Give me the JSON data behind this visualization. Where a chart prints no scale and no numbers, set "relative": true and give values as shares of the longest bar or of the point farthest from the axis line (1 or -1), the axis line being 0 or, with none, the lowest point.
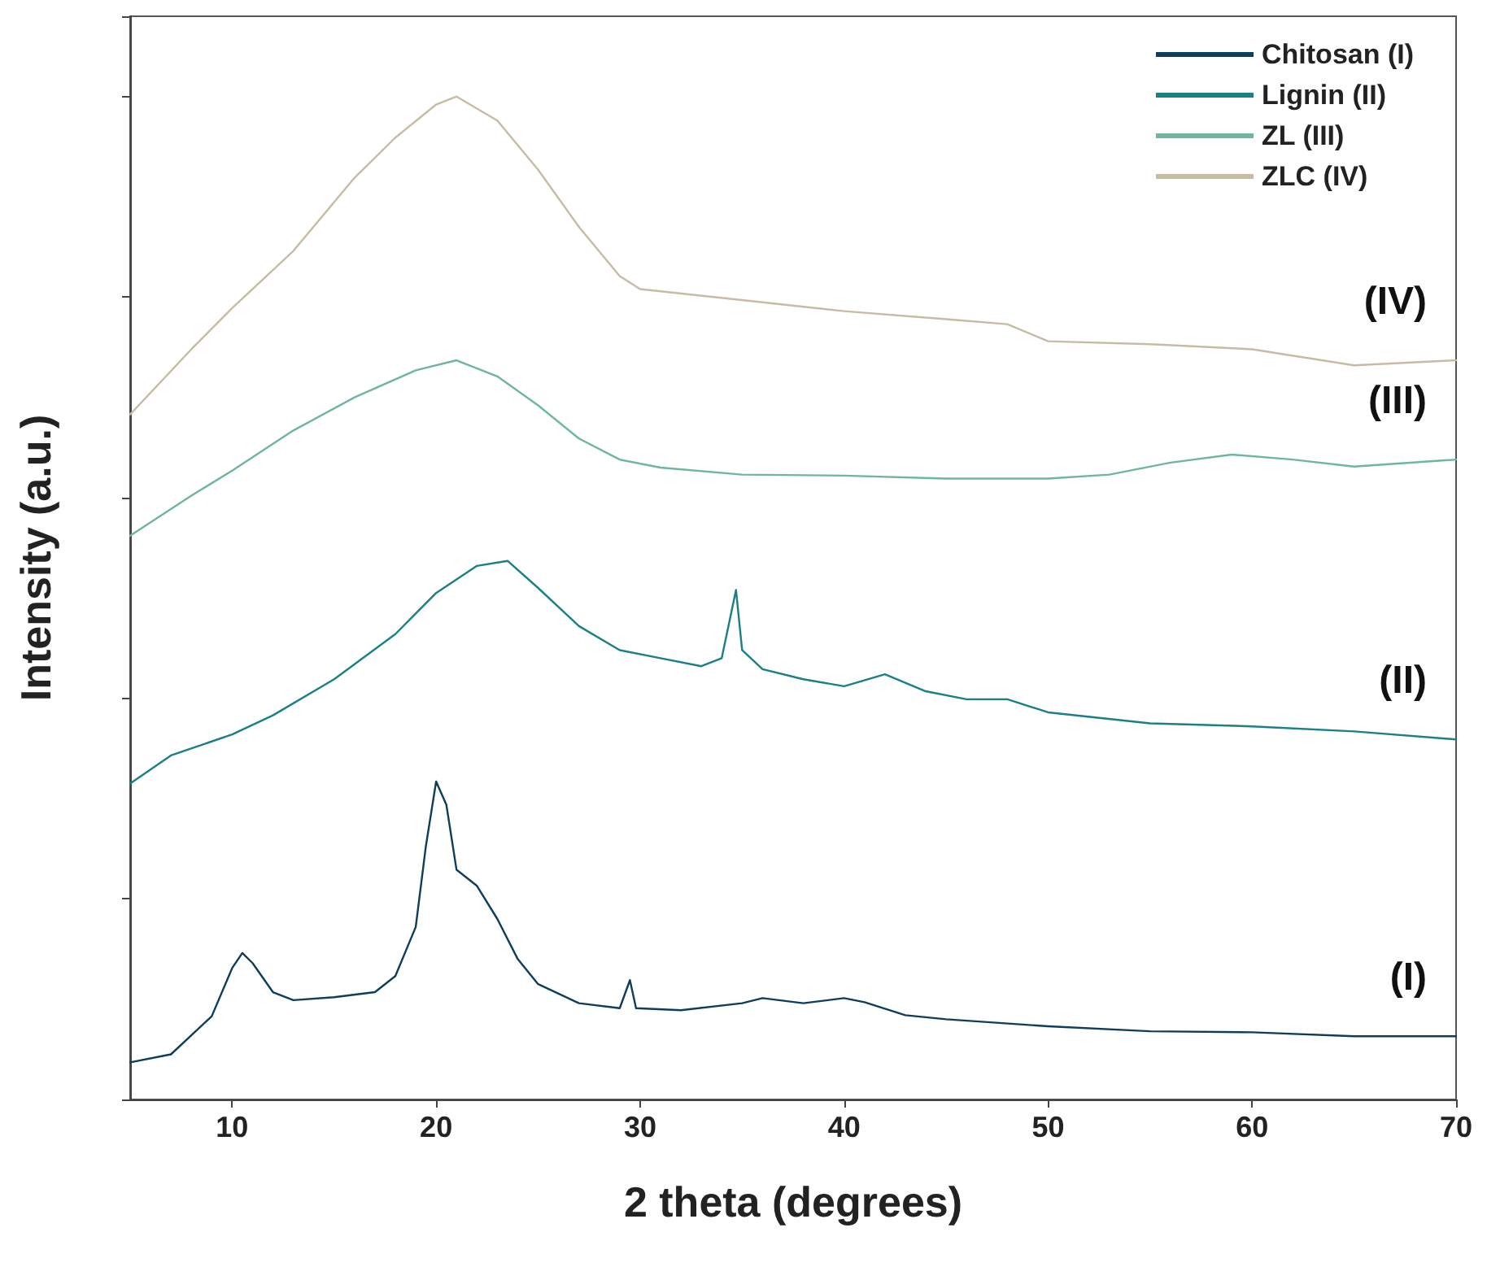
{
  "chart_data": {
    "type": "line",
    "xlabel": "2 theta (degrees)",
    "ylabel": "Intensity (a.u.)",
    "relative": true,
    "xlim": [
      5,
      70
    ],
    "xticks": [
      10,
      20,
      30,
      40,
      50,
      60,
      70
    ],
    "grid": false,
    "legend": "top right",
    "marker": "none",
    "line_style": "solid",
    "series": [
      {
        "name": "Chitosan (I)",
        "color": "#0f3d5c",
        "x": [
          5,
          7,
          9,
          10,
          10.5,
          11,
          12,
          13,
          15,
          17,
          18,
          19,
          19.5,
          20,
          20.5,
          21,
          22,
          23,
          24,
          25,
          27,
          29,
          29.5,
          29.8,
          32,
          35,
          36,
          38,
          40,
          41,
          43,
          45,
          50,
          55,
          60,
          65,
          70
        ],
        "values": [
          0.037,
          0.045,
          0.083,
          0.131,
          0.146,
          0.136,
          0.107,
          0.099,
          0.102,
          0.107,
          0.123,
          0.172,
          0.253,
          0.317,
          0.294,
          0.229,
          0.213,
          0.18,
          0.14,
          0.115,
          0.096,
          0.091,
          0.119,
          0.091,
          0.089,
          0.096,
          0.101,
          0.096,
          0.101,
          0.097,
          0.084,
          0.08,
          0.073,
          0.068,
          0.067,
          0.063,
          0.063
        ]
      },
      {
        "name": "Lignin (II)",
        "color": "#1b7f86",
        "x": [
          5,
          7,
          10,
          12,
          15,
          18,
          20,
          22,
          23.5,
          25,
          27,
          29,
          31,
          33,
          34,
          34.7,
          35,
          36,
          38,
          40,
          42,
          44,
          46,
          48,
          50,
          55,
          60,
          65,
          70
        ],
        "values": [
          0.315,
          0.343,
          0.364,
          0.383,
          0.419,
          0.464,
          0.505,
          0.532,
          0.537,
          0.51,
          0.472,
          0.448,
          0.44,
          0.432,
          0.44,
          0.508,
          0.448,
          0.429,
          0.419,
          0.412,
          0.424,
          0.407,
          0.399,
          0.399,
          0.386,
          0.375,
          0.372,
          0.367,
          0.359
        ]
      },
      {
        "name": "ZL (III)",
        "color": "#6fb5a0",
        "x": [
          5,
          8,
          10,
          13,
          16,
          19,
          21,
          23,
          25,
          27,
          29,
          31,
          35,
          40,
          45,
          50,
          53,
          56,
          59,
          62,
          65,
          70
        ],
        "values": [
          0.562,
          0.602,
          0.627,
          0.667,
          0.7,
          0.727,
          0.737,
          0.721,
          0.692,
          0.659,
          0.638,
          0.63,
          0.623,
          0.622,
          0.619,
          0.619,
          0.623,
          0.635,
          0.643,
          0.638,
          0.631,
          0.638
        ]
      },
      {
        "name": "ZLC (IV)",
        "color": "#c8bba3",
        "x": [
          5,
          8,
          10,
          13,
          16,
          18,
          20,
          21,
          23,
          25,
          27,
          29,
          30,
          35,
          40,
          45,
          48,
          50,
          55,
          60,
          65,
          70
        ],
        "values": [
          0.683,
          0.748,
          0.789,
          0.846,
          0.919,
          0.959,
          0.992,
          1.0,
          0.976,
          0.927,
          0.87,
          0.821,
          0.808,
          0.797,
          0.786,
          0.778,
          0.773,
          0.756,
          0.753,
          0.748,
          0.732,
          0.737
        ]
      }
    ],
    "annotations": [
      "(I)",
      "(II)",
      "(III)",
      "(IV)"
    ]
  }
}
